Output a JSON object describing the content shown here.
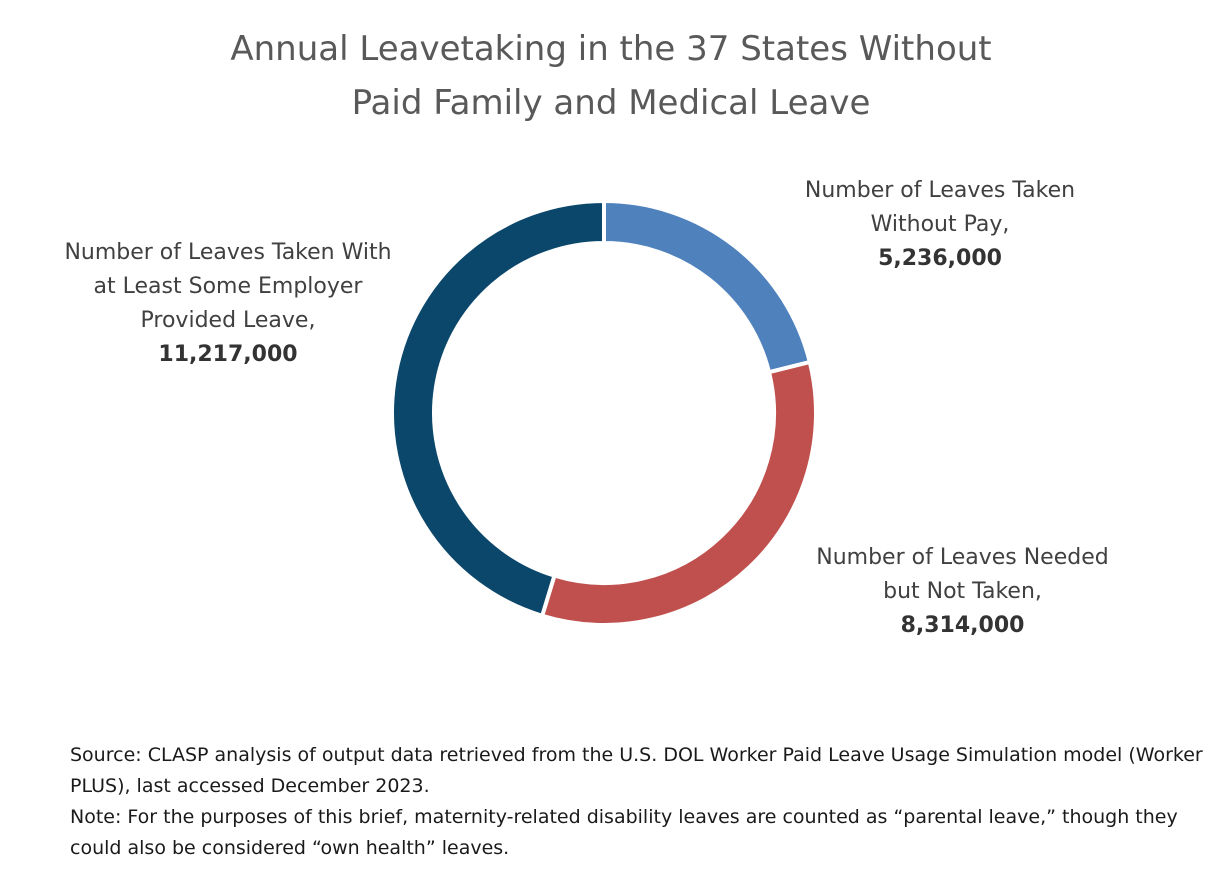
{
  "title_lines": [
    "Annual Leavetaking in the 37 States Without",
    "Paid Family and Medical Leave"
  ],
  "chart_data": {
    "type": "pie",
    "donut": true,
    "title": "Annual Leavetaking in the 37 States Without Paid Family and Medical Leave",
    "series": [
      {
        "name": "Number of Leaves Taken Without Pay,",
        "label_lines": [
          "Number of Leaves Taken",
          "Without Pay,"
        ],
        "value": 5236000,
        "value_label": "5,236,000",
        "color": "#4f81bd"
      },
      {
        "name": "Number of Leaves Needed but Not Taken,",
        "label_lines": [
          "Number of Leaves Needed",
          "but Not Taken,"
        ],
        "value": 8314000,
        "value_label": "8,314,000",
        "color": "#c0504d"
      },
      {
        "name": "Number of Leaves Taken With at Least Some Employer Provided Leave,",
        "label_lines": [
          "Number of Leaves Taken With",
          "at Least Some Employer",
          "Provided Leave,"
        ],
        "value": 11217000,
        "value_label": "11,217,000",
        "color": "#0b476b"
      }
    ]
  },
  "footer": {
    "source": "Source: CLASP analysis of output data retrieved from the U.S. DOL Worker Paid Leave Usage Simulation model (Worker PLUS), last accessed December 2023.",
    "note": "Note: For the purposes of this brief, maternity-related disability leaves are counted as “parental leave,” though they could also be considered “own health” leaves."
  }
}
